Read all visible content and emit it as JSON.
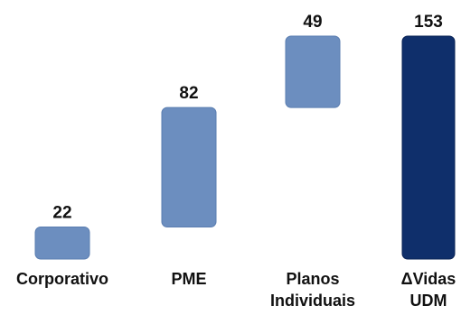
{
  "chart_data": {
    "type": "bar",
    "subtype": "waterfall",
    "categories": [
      {
        "lines": [
          "Corporativo"
        ]
      },
      {
        "lines": [
          "PME"
        ]
      },
      {
        "lines": [
          "Planos",
          "Individuais"
        ]
      },
      {
        "lines": [
          "ΔVidas",
          "UDM"
        ]
      }
    ],
    "bars": [
      {
        "value": 22,
        "base": 0,
        "label": "22",
        "kind": "increment"
      },
      {
        "value": 82,
        "base": 22,
        "label": "82",
        "kind": "increment"
      },
      {
        "value": 49,
        "base": 104,
        "label": "49",
        "kind": "increment"
      },
      {
        "value": 153,
        "base": 0,
        "label": "153",
        "kind": "total"
      }
    ],
    "title": "",
    "xlabel": "",
    "ylabel": "",
    "ylim": [
      0,
      153
    ],
    "grid": false,
    "legend": "none",
    "colors": {
      "increment_fill": "#6c8ebf",
      "increment_edge": "#5a7db0",
      "total_fill": "#0f2f6b",
      "total_edge": "#0a2356",
      "text": "#111111"
    }
  }
}
